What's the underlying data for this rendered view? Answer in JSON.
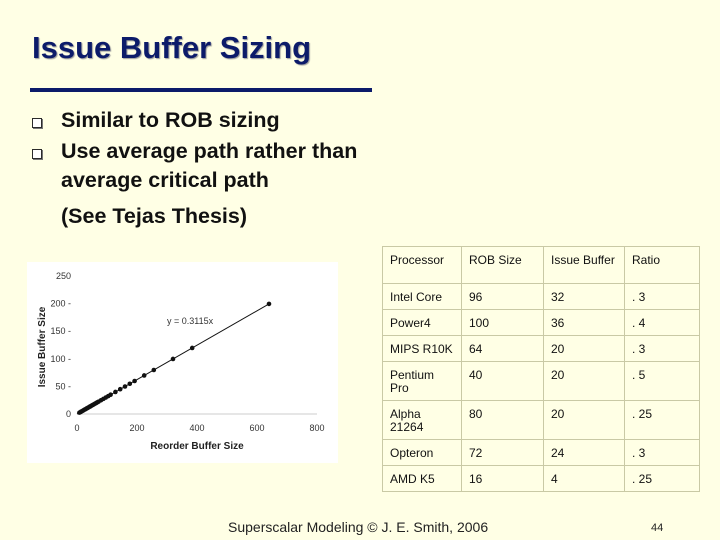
{
  "slide": {
    "title": "Issue Buffer Sizing",
    "bullets": [
      {
        "text": "Similar to ROB sizing"
      },
      {
        "text": "Use average path rather than average critical path"
      }
    ],
    "note": "(See Tejas Thesis)",
    "footer": "Superscalar Modeling © J. E. Smith, 2006",
    "page_number": "44"
  },
  "chart_data": {
    "type": "scatter",
    "xlabel": "Reorder Buffer Size",
    "ylabel": "Issue Buffer Size",
    "xlim": [
      0,
      800
    ],
    "ylim": [
      0,
      250
    ],
    "xticks": [
      0,
      200,
      400,
      600,
      800
    ],
    "yticks": [
      0,
      50,
      100,
      150,
      200,
      250
    ],
    "xtick_labels": [
      "0",
      "200",
      "400",
      "600",
      "800"
    ],
    "ytick_labels": [
      "0",
      "50 -",
      "100 -",
      "150 -",
      "200 -",
      "250"
    ],
    "annotation": "y = 0.3115x",
    "trendline": {
      "slope": 0.3115,
      "intercept": 0
    },
    "series": [
      {
        "x": [
          8,
          12,
          16,
          20,
          24,
          28,
          32,
          36,
          40,
          44,
          48,
          52,
          56,
          60,
          64,
          68,
          72,
          80,
          88,
          96,
          104,
          112,
          128,
          144,
          160,
          176,
          192,
          224,
          256,
          320,
          384,
          640
        ],
        "y": [
          2.5,
          3.7,
          5.0,
          6.2,
          7.5,
          8.7,
          10.0,
          11.2,
          12.5,
          13.7,
          15.0,
          16.2,
          17.4,
          18.7,
          19.9,
          21.2,
          22.4,
          24.9,
          27.4,
          29.9,
          32.4,
          34.9,
          39.9,
          44.9,
          49.8,
          54.8,
          59.8,
          69.8,
          79.7,
          99.7,
          119.6,
          199.4
        ]
      }
    ],
    "colors": {
      "points": "#111111",
      "line": "#111111"
    },
    "grid": false
  },
  "table": {
    "headers": [
      "Processor",
      "ROB Size",
      "Issue Buffer",
      "Ratio"
    ],
    "rows": [
      [
        "Intel Core",
        "96",
        "32",
        ". 3"
      ],
      [
        "Power4",
        "100",
        "36",
        ". 4"
      ],
      [
        "MIPS R10K",
        "64",
        "20",
        ". 3"
      ],
      [
        "Pentium Pro",
        "40",
        "20",
        ". 5"
      ],
      [
        "Alpha 21264",
        "80",
        "20",
        ". 25"
      ],
      [
        "Opteron",
        "72",
        "24",
        ". 3"
      ],
      [
        "AMD K5",
        "16",
        "4",
        ". 25"
      ]
    ]
  }
}
